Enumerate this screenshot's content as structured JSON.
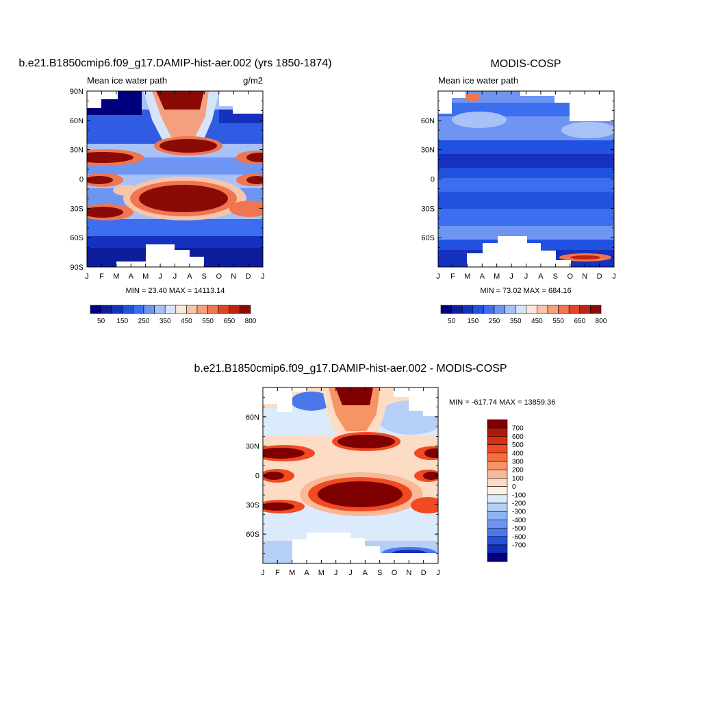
{
  "palette": {
    "model": [
      "#00007f",
      "#0d1e9c",
      "#1432bf",
      "#2251e0",
      "#3b6ff0",
      "#6e95f2",
      "#a8c2f7",
      "#d6e4fa",
      "#fbe8dc",
      "#f8c5ab",
      "#f4a07f",
      "#ef7650",
      "#e34524",
      "#bd2411",
      "#8a0b06"
    ],
    "diff": [
      "#7f0000",
      "#ad1a0a",
      "#d6300f",
      "#ef4a22",
      "#f46d42",
      "#f79466",
      "#f9b896",
      "#fcdcc4",
      "#fcf2e6",
      "#dcebfb",
      "#b5cff6",
      "#8fb3f2",
      "#6f96ef",
      "#4a77ec",
      "#2851dd",
      "#1230b6",
      "#000080"
    ]
  },
  "chart_data": [
    {
      "type": "heatmap",
      "title": "b.e21.B1850cmip6.f09_g17.DAMIP-hist-aer.002 (yrs 1850-1874)",
      "subtitle_left": "Mean ice water path",
      "subtitle_right": "g/m2",
      "x_ticks": [
        "J",
        "F",
        "M",
        "A",
        "M",
        "J",
        "J",
        "A",
        "S",
        "O",
        "N",
        "D",
        "J"
      ],
      "y_ticks": [
        "90N",
        "60N",
        "30N",
        "0",
        "30S",
        "60S",
        "90S"
      ],
      "xlim": [
        0,
        12
      ],
      "ylim": [
        -90,
        90
      ],
      "stats": "MIN =  23.40 MAX = 14113.14",
      "colorbar": {
        "orientation": "horizontal",
        "labels": [
          "50",
          "150",
          "250",
          "350",
          "450",
          "550",
          "650",
          "800"
        ]
      },
      "missing_data_mask": "polar gaps in NH winter and SH winter (white)"
    },
    {
      "type": "heatmap",
      "title": "MODIS-COSP",
      "subtitle_left": "Mean ice water path",
      "subtitle_right": "",
      "x_ticks": [
        "J",
        "F",
        "M",
        "A",
        "M",
        "J",
        "J",
        "A",
        "S",
        "O",
        "N",
        "D",
        "J"
      ],
      "y_ticks": [
        "60N",
        "30N",
        "0",
        "30S",
        "60S"
      ],
      "xlim": [
        0,
        12
      ],
      "ylim": [
        -90,
        90
      ],
      "stats": "MIN =  73.02 MAX = 684.16",
      "colorbar": {
        "orientation": "horizontal",
        "labels": [
          "50",
          "150",
          "250",
          "350",
          "450",
          "550",
          "650",
          "800"
        ]
      }
    },
    {
      "type": "heatmap",
      "title": "b.e21.B1850cmip6.f09_g17.DAMIP-hist-aer.002 - MODIS-COSP",
      "x_ticks": [
        "J",
        "F",
        "M",
        "A",
        "M",
        "J",
        "J",
        "A",
        "S",
        "O",
        "N",
        "D",
        "J"
      ],
      "y_ticks": [
        "60N",
        "30N",
        "0",
        "30S",
        "60S"
      ],
      "xlim": [
        0,
        12
      ],
      "ylim": [
        -90,
        90
      ],
      "stats": "MIN = -617.74 MAX = 13859.36",
      "colorbar": {
        "orientation": "vertical",
        "labels": [
          "700",
          "600",
          "500",
          "400",
          "300",
          "200",
          "100",
          "0",
          "-100",
          "-200",
          "-300",
          "-400",
          "-500",
          "-600",
          "-700"
        ]
      }
    }
  ]
}
